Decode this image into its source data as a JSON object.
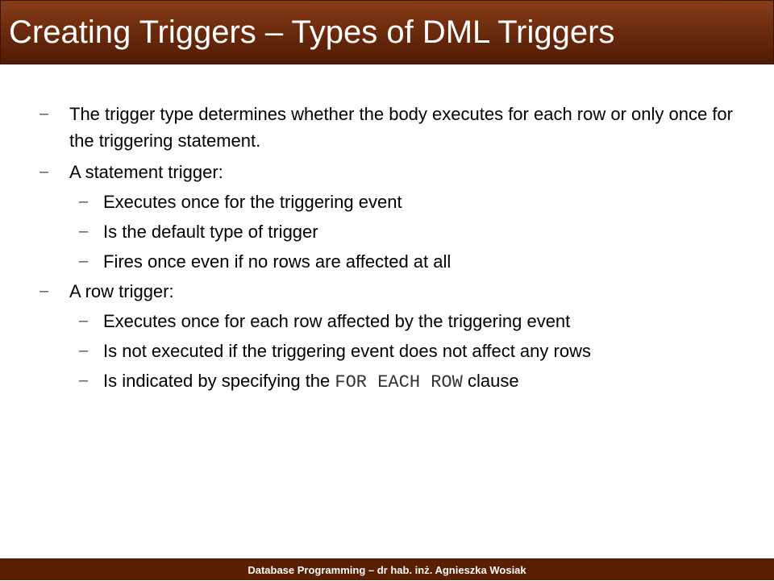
{
  "slide": {
    "title": "Creating Triggers – Types of DML Triggers",
    "footer": "Database Programming – dr hab. inż. Agnieszka Wosiak",
    "colors": {
      "title_bar": "#6b2a0c",
      "footer_bar": "#5a1e02",
      "title_text": "#ffffff"
    }
  },
  "bullets": {
    "b1": "The trigger type determines whether the body executes for each row or only once for the triggering statement.",
    "b2": "A statement trigger:",
    "b2_1": "Executes once for the triggering event",
    "b2_2": "Is the default type of trigger",
    "b2_3": "Fires once even if no rows are affected at all",
    "b3": "A row trigger:",
    "b3_1": "Executes once for each row affected by the triggering event",
    "b3_2": "Is not executed if the triggering event does not affect any rows",
    "b3_3_prefix": "Is indicated by specifying the",
    "b3_3_code": "FOR EACH ROW",
    "b3_3_suffix": "clause",
    "dash": "–"
  }
}
